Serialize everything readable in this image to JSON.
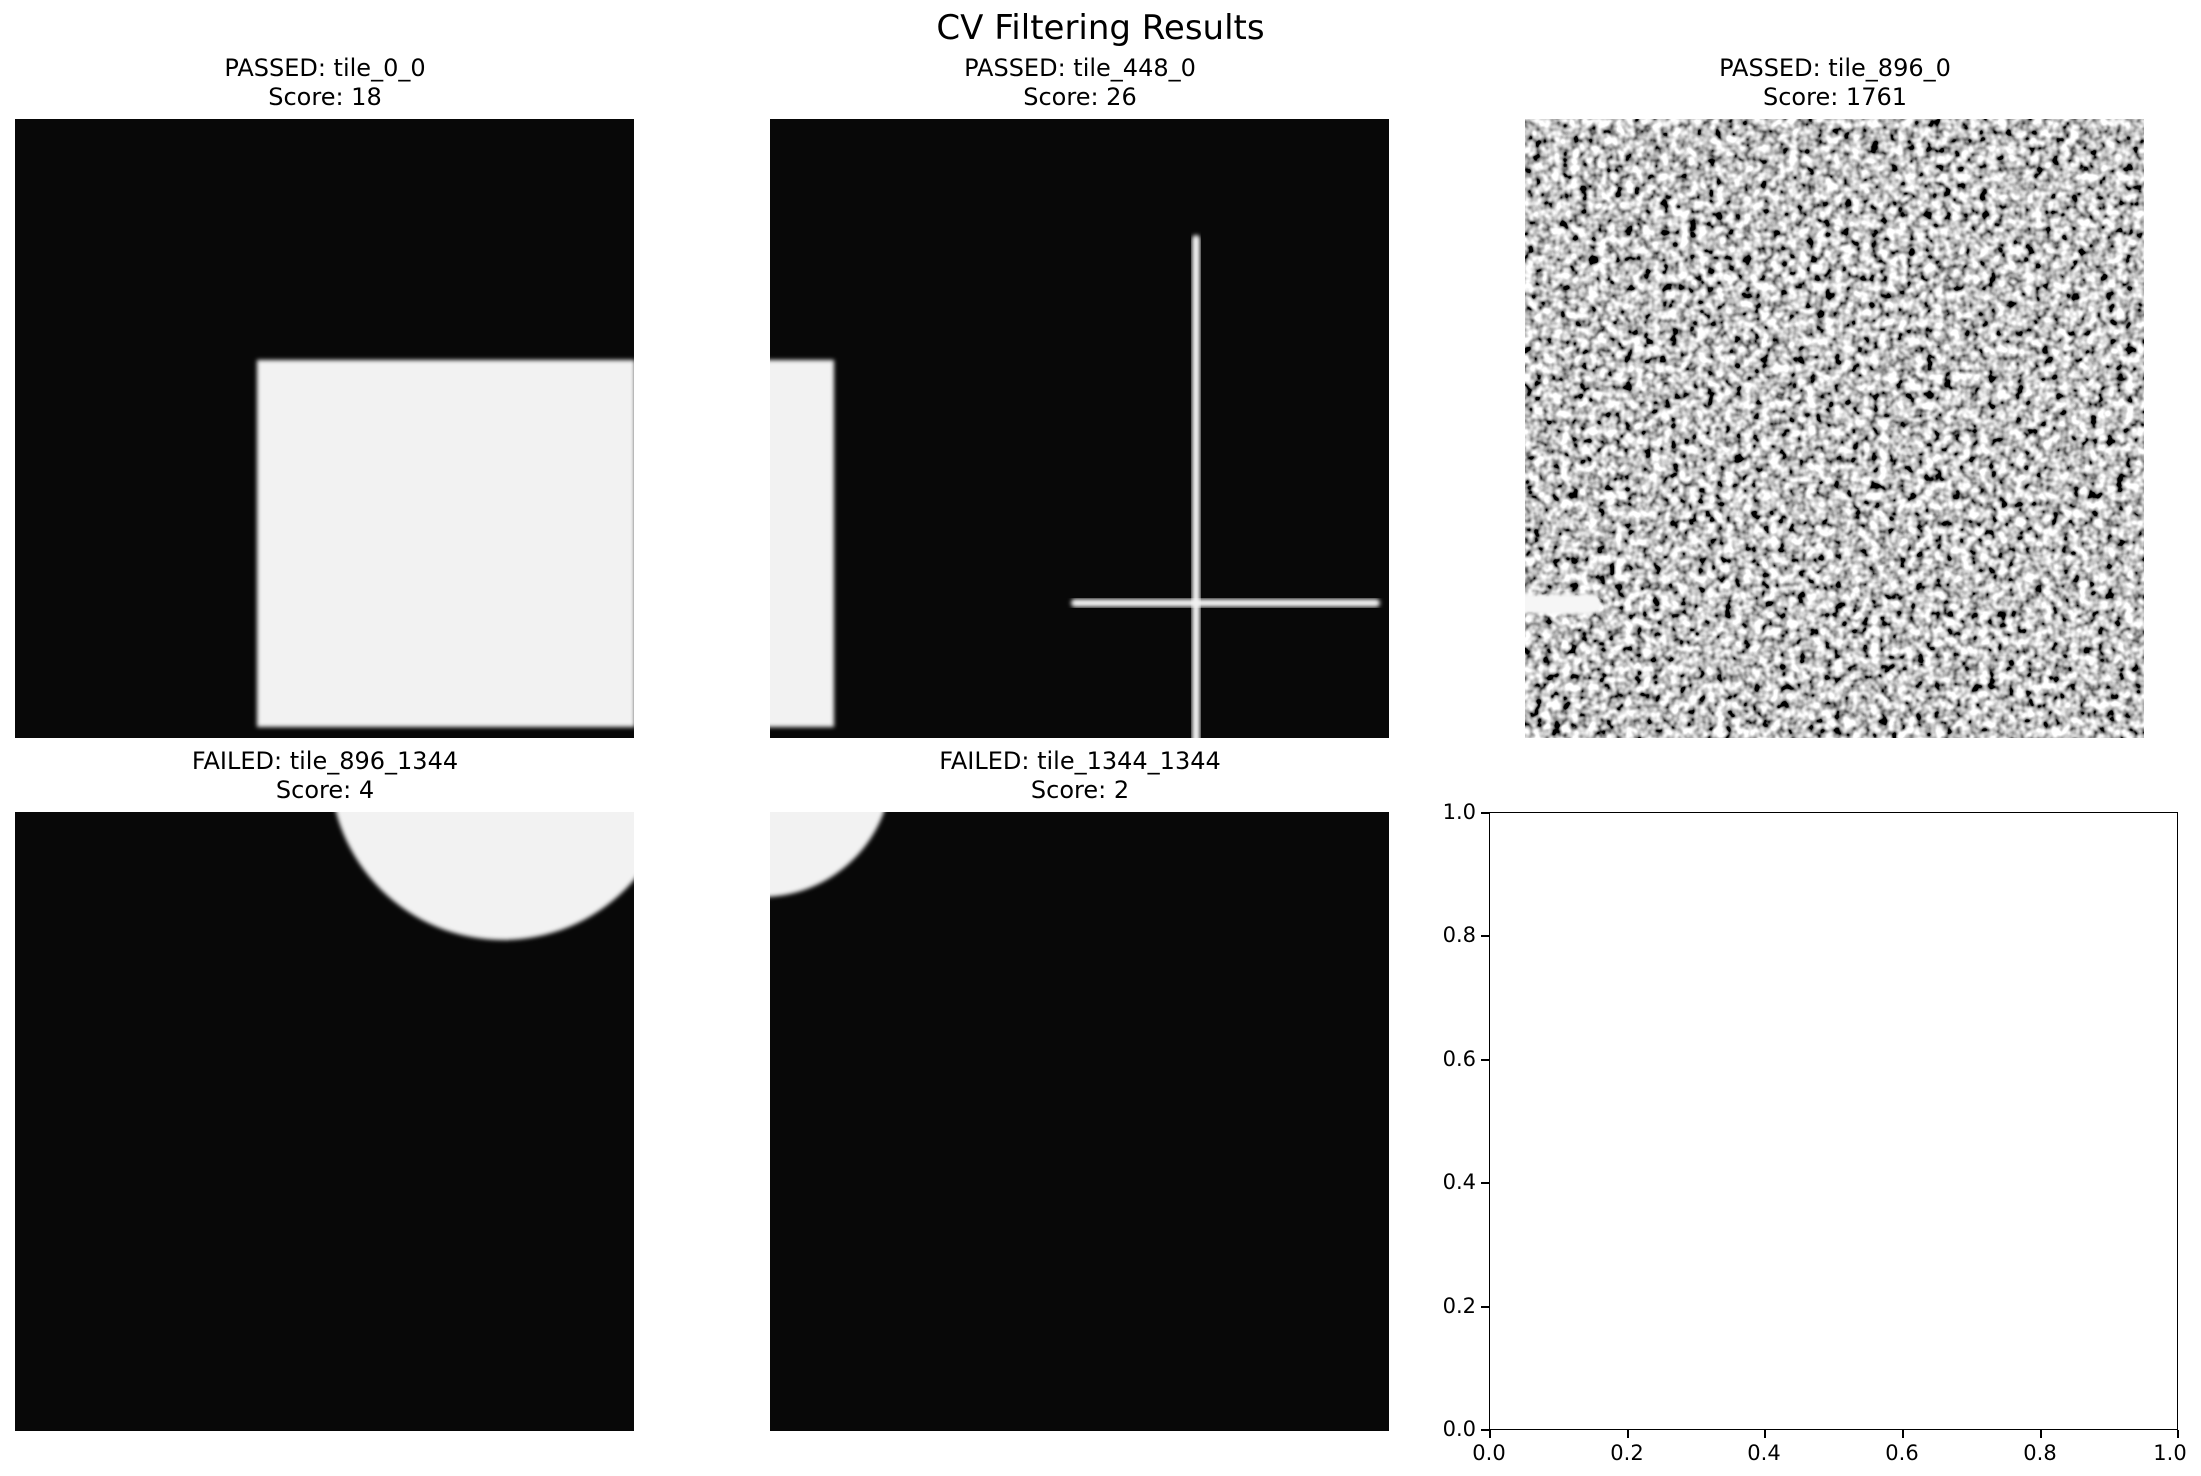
{
  "figure": {
    "title": "CV Filtering Results"
  },
  "panels": [
    {
      "status": "PASSED",
      "tile": "tile_0_0",
      "score": 18,
      "heading": "PASSED: tile_0_0",
      "score_text": "Score: 18"
    },
    {
      "status": "PASSED",
      "tile": "tile_448_0",
      "score": 26,
      "heading": "PASSED: tile_448_0",
      "score_text": "Score: 26"
    },
    {
      "status": "PASSED",
      "tile": "tile_896_0",
      "score": 1761,
      "heading": "PASSED: tile_896_0",
      "score_text": "Score: 1761"
    },
    {
      "status": "FAILED",
      "tile": "tile_896_1344",
      "score": 4,
      "heading": "FAILED: tile_896_1344",
      "score_text": "Score: 4"
    },
    {
      "status": "FAILED",
      "tile": "tile_1344_1344",
      "score": 2,
      "heading": "FAILED: tile_1344_1344",
      "score_text": "Score: 2"
    }
  ],
  "empty_axes": {
    "xlim": [
      0.0,
      1.0
    ],
    "ylim": [
      0.0,
      1.0
    ],
    "xticks": [
      "0.0",
      "0.2",
      "0.4",
      "0.6",
      "0.8",
      "1.0"
    ],
    "yticks": [
      "0.0",
      "0.2",
      "0.4",
      "0.6",
      "0.8",
      "1.0"
    ]
  },
  "colors": {
    "tile_background": "#080808",
    "shape_fill": "#f2f2f2"
  }
}
